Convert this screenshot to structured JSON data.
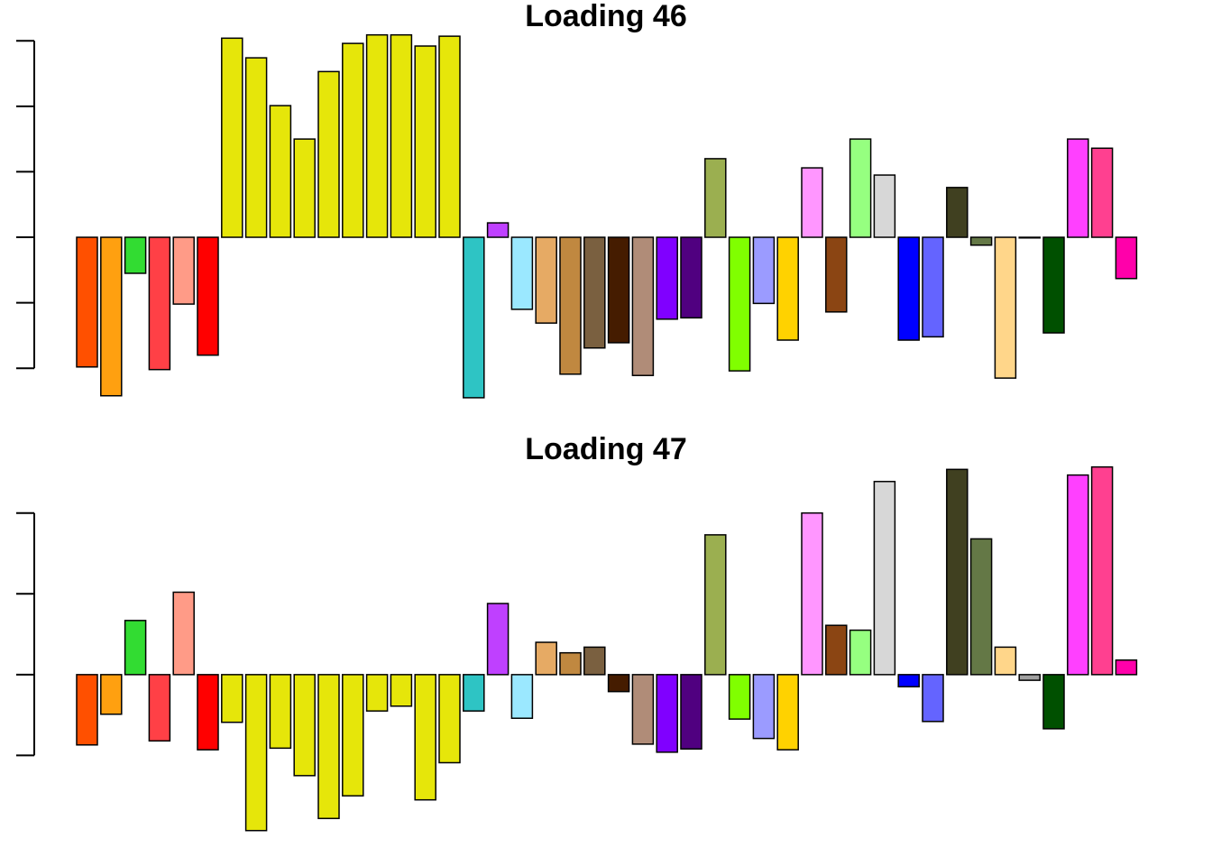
{
  "chart_data": [
    {
      "type": "bar",
      "title": "Loading 46",
      "values": [
        -1.98,
        -2.42,
        -0.55,
        -2.02,
        -1.02,
        -1.8,
        3.04,
        2.74,
        2.01,
        1.5,
        2.53,
        2.96,
        3.09,
        3.09,
        2.92,
        3.07,
        -2.45,
        0.22,
        -1.1,
        -1.31,
        -2.09,
        -1.69,
        -1.61,
        -2.11,
        -1.25,
        -1.23,
        1.2,
        -2.04,
        -1.01,
        -1.57,
        1.06,
        -1.14,
        1.5,
        0.95,
        -1.57,
        -1.52,
        0.76,
        -0.12,
        -2.15,
        -0.01,
        -1.46,
        1.5,
        1.36,
        -0.63
      ],
      "colors": [
        "#ff5000",
        "#ffa010",
        "#32dc32",
        "#ff4046",
        "#ff9b87",
        "#ff0000",
        "#e6e60a",
        "#e6e60a",
        "#e6e60a",
        "#e6e60a",
        "#e6e60a",
        "#e6e60a",
        "#e6e60a",
        "#e6e60a",
        "#e6e60a",
        "#e6e60a",
        "#2ec4c4",
        "#bf40ff",
        "#9be8ff",
        "#e6aa64",
        "#c08840",
        "#7a6040",
        "#451c00",
        "#b08c78",
        "#8000ff",
        "#500080",
        "#9baf50",
        "#80ff00",
        "#9b9bff",
        "#ffd200",
        "#ff96ff",
        "#8b4513",
        "#96ff80",
        "#d7d7d7",
        "#0000ff",
        "#6464ff",
        "#404020",
        "#647846",
        "#ffd68a",
        "#a0a0a0",
        "#005000",
        "#ff40ff",
        "#ff4090",
        "#ff00aa"
      ],
      "ylim": [
        -2.6,
        3.2
      ],
      "yticks": [
        -2,
        -1,
        0,
        1,
        2,
        3
      ]
    },
    {
      "type": "bar",
      "title": "Loading 47",
      "values": [
        -0.87,
        -0.49,
        0.67,
        -0.82,
        1.02,
        -0.93,
        -0.59,
        -1.93,
        -0.91,
        -1.25,
        -1.78,
        -1.5,
        -0.45,
        -0.39,
        -1.55,
        -1.09,
        -0.45,
        0.88,
        -0.54,
        0.4,
        0.27,
        0.34,
        -0.21,
        -0.86,
        -0.96,
        -0.92,
        1.73,
        -0.55,
        -0.79,
        -0.93,
        2.0,
        0.61,
        0.55,
        2.39,
        -0.15,
        -0.58,
        2.54,
        1.68,
        0.34,
        -0.07,
        -0.67,
        2.47,
        2.57,
        0.18
      ],
      "colors": [
        "#ff5000",
        "#ffa010",
        "#32dc32",
        "#ff4046",
        "#ff9b87",
        "#ff0000",
        "#e6e60a",
        "#e6e60a",
        "#e6e60a",
        "#e6e60a",
        "#e6e60a",
        "#e6e60a",
        "#e6e60a",
        "#e6e60a",
        "#e6e60a",
        "#e6e60a",
        "#2ec4c4",
        "#bf40ff",
        "#9be8ff",
        "#e6aa64",
        "#c08840",
        "#7a6040",
        "#451c00",
        "#b08c78",
        "#8000ff",
        "#500080",
        "#9baf50",
        "#80ff00",
        "#9b9bff",
        "#ffd200",
        "#ff96ff",
        "#8b4513",
        "#96ff80",
        "#d7d7d7",
        "#0000ff",
        "#6464ff",
        "#404020",
        "#647846",
        "#ffd68a",
        "#a0a0a0",
        "#005000",
        "#ff40ff",
        "#ff4090",
        "#ff00aa"
      ],
      "ylim": [
        -2.0,
        2.7
      ],
      "yticks": [
        -1,
        0,
        1,
        2
      ]
    }
  ]
}
